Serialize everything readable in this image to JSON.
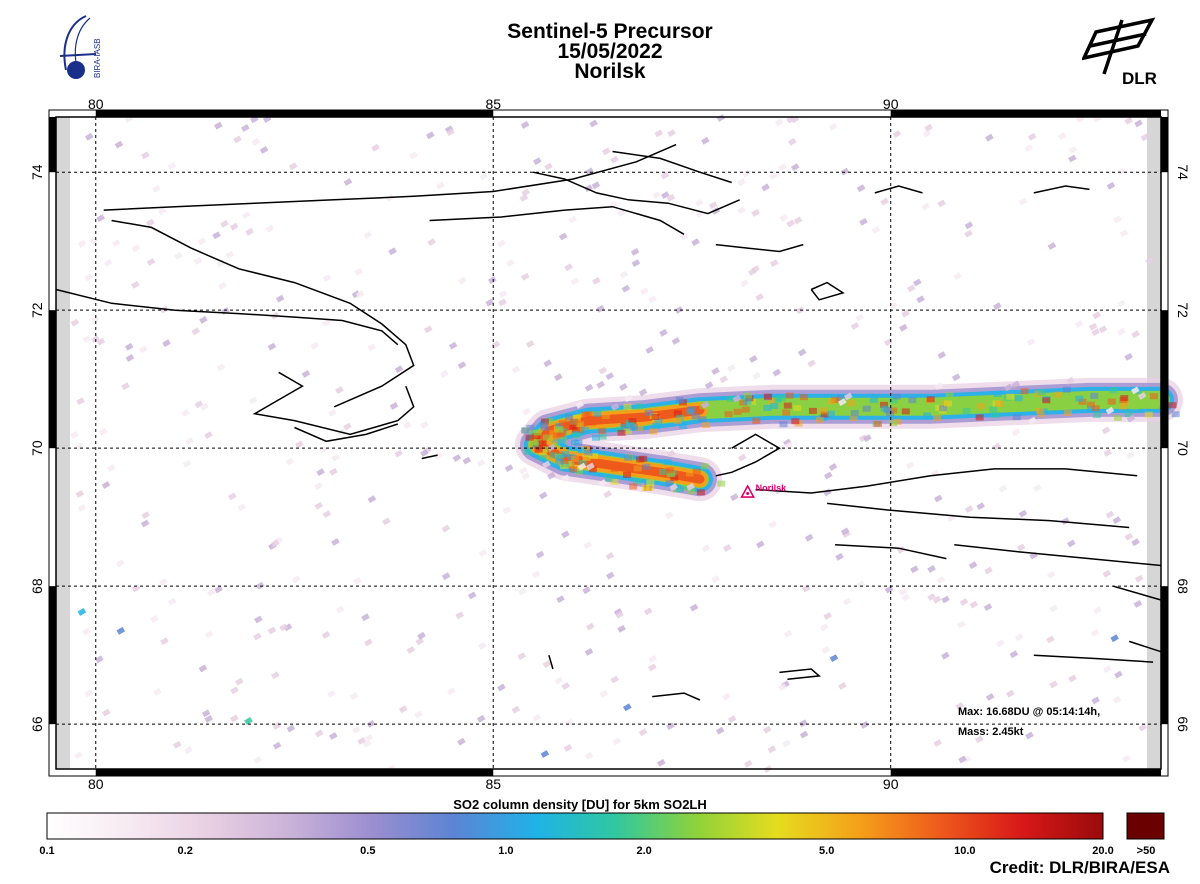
{
  "title": {
    "line1": "Sentinel-5 Precursor",
    "line2": "15/05/2022",
    "line3": "Norilsk"
  },
  "logos": {
    "left": {
      "text": "BIRA-IASB",
      "icon": "bira-iasb-logo"
    },
    "right": {
      "text": "DLR",
      "icon": "dlr-logo"
    }
  },
  "map": {
    "lon_range": [
      79.5,
      93.4
    ],
    "lat_range": [
      65.35,
      74.8
    ],
    "lon_ticks": [
      80,
      85,
      90
    ],
    "lat_ticks": [
      66,
      68,
      70,
      72,
      74
    ],
    "lon_tick_labels": [
      "80",
      "85",
      "90"
    ],
    "lat_tick_labels": [
      "66",
      "68",
      "70",
      "72",
      "74"
    ],
    "grid": true
  },
  "volcano": {
    "name": "Norilsk",
    "lon": 88.2,
    "lat": 69.35,
    "color": "#e0006a"
  },
  "plume_peak": {
    "max_text": "Max:  16.68DU @ 05:14:14h,",
    "mass_text": "Mass:  2.45kt"
  },
  "colorbar": {
    "title": "SO2 column density [DU] for 5km SO2LH",
    "labels": [
      "0.1",
      "0.2",
      "0.5",
      "1.0",
      "2.0",
      "5.0",
      "10.0",
      "20.0"
    ],
    "overflow_label": ">50",
    "overflow_color": "#6b0000",
    "stops": [
      "#ffffff",
      "#f7eaf2",
      "#e8cfe3",
      "#c9b2d8",
      "#9b8ed0",
      "#5c84d4",
      "#1fb2e8",
      "#2fc8a0",
      "#8ed23a",
      "#e6dc1e",
      "#f5a01a",
      "#ee5a1c",
      "#d81818",
      "#9a0b0b"
    ]
  },
  "credit": "Credit: DLR/BIRA/ESA"
}
